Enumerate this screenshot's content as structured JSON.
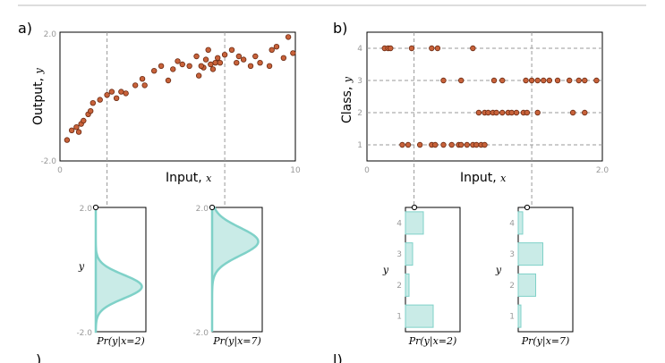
{
  "panels": {
    "a": "a)",
    "b": "b)",
    "c": ")",
    "d": "l)"
  },
  "chart_data": [
    {
      "id": "a",
      "type": "scatter",
      "xlabel_text": "Input, ",
      "xlabel_var": "x",
      "ylabel_text": "Output, ",
      "ylabel_var": "y",
      "xlim": [
        0,
        10
      ],
      "ylim": [
        -2.0,
        2.0
      ],
      "xtick_labels": [
        "0",
        "10"
      ],
      "ytick_labels": [
        "2.0",
        "-2.0"
      ],
      "markers_x": [
        2,
        7
      ],
      "points": [
        [
          0.3,
          -1.35
        ],
        [
          0.5,
          -1.05
        ],
        [
          0.7,
          -0.95
        ],
        [
          0.8,
          -1.1
        ],
        [
          0.9,
          -0.85
        ],
        [
          1.0,
          -0.75
        ],
        [
          1.2,
          -0.55
        ],
        [
          1.3,
          -0.45
        ],
        [
          1.4,
          -0.2
        ],
        [
          1.7,
          -0.1
        ],
        [
          2.0,
          0.05
        ],
        [
          2.2,
          0.15
        ],
        [
          2.4,
          -0.05
        ],
        [
          2.6,
          0.15
        ],
        [
          2.8,
          0.1
        ],
        [
          3.2,
          0.35
        ],
        [
          3.5,
          0.55
        ],
        [
          3.6,
          0.35
        ],
        [
          4.0,
          0.8
        ],
        [
          4.3,
          0.95
        ],
        [
          4.6,
          0.5
        ],
        [
          4.8,
          0.85
        ],
        [
          5.0,
          1.1
        ],
        [
          5.2,
          1.0
        ],
        [
          5.5,
          0.95
        ],
        [
          5.8,
          1.25
        ],
        [
          6.1,
          0.9
        ],
        [
          6.3,
          1.45
        ],
        [
          6.6,
          1.05
        ],
        [
          6.8,
          1.05
        ],
        [
          7.0,
          1.3
        ],
        [
          5.9,
          0.65
        ],
        [
          6.0,
          0.95
        ],
        [
          6.2,
          1.15
        ],
        [
          6.4,
          1.0
        ],
        [
          6.5,
          0.85
        ],
        [
          6.7,
          1.2
        ],
        [
          7.3,
          1.45
        ],
        [
          7.5,
          1.05
        ],
        [
          7.6,
          1.25
        ],
        [
          7.8,
          1.15
        ],
        [
          8.1,
          0.95
        ],
        [
          8.3,
          1.25
        ],
        [
          8.5,
          1.05
        ],
        [
          8.9,
          0.95
        ],
        [
          9.0,
          1.45
        ],
        [
          9.2,
          1.55
        ],
        [
          9.5,
          1.2
        ],
        [
          9.7,
          1.85
        ],
        [
          9.9,
          1.35
        ]
      ]
    },
    {
      "id": "b",
      "type": "scatter",
      "xlabel_text": "Input, ",
      "xlabel_var": "x",
      "ylabel_text": "Class, ",
      "ylabel_var": "y",
      "xlim": [
        0,
        2.0
      ],
      "ylim": [
        0.5,
        4.5
      ],
      "xtick_labels": [
        "0",
        "2.0"
      ],
      "yticks": [
        "1",
        "2",
        "3",
        "4"
      ],
      "markers_x": [
        0.4,
        1.4
      ],
      "class_points": {
        "1": [
          0.3,
          0.35,
          0.45,
          0.55,
          0.58,
          0.65,
          0.72,
          0.78,
          0.8,
          0.85,
          0.9,
          0.93,
          0.97,
          1.0
        ],
        "2": [
          0.95,
          1.0,
          1.03,
          1.07,
          1.1,
          1.15,
          1.2,
          1.23,
          1.27,
          1.33,
          1.36,
          1.45,
          1.75,
          1.85
        ],
        "3": [
          0.65,
          0.8,
          1.08,
          1.15,
          1.35,
          1.4,
          1.45,
          1.5,
          1.55,
          1.62,
          1.72,
          1.8,
          1.85,
          1.95
        ],
        "4": [
          0.15,
          0.18,
          0.2,
          0.38,
          0.55,
          0.6,
          0.9
        ]
      }
    },
    {
      "id": "c1",
      "type": "area",
      "ylim": [
        -2.0,
        2.0
      ],
      "ytick_labels": [
        "2.0",
        "-2.0"
      ],
      "ylabel_var": "y",
      "xlabel": "Pr(y|x=2)",
      "mean": -0.55,
      "sd": 0.38
    },
    {
      "id": "c2",
      "type": "area",
      "ylim": [
        -2.0,
        2.0
      ],
      "ytick_labels": [
        "2.0",
        "-2.0"
      ],
      "xlabel": "Pr(y|x=7)",
      "mean": 0.9,
      "sd": 0.45
    },
    {
      "id": "d1",
      "type": "bar",
      "categories": [
        "1",
        "2",
        "3",
        "4"
      ],
      "values": [
        0.62,
        0.08,
        0.16,
        0.4
      ],
      "ylabel_var": "y",
      "xlabel": "Pr(y|x=2)"
    },
    {
      "id": "d2",
      "type": "bar",
      "categories": [
        "1",
        "2",
        "3",
        "4"
      ],
      "values": [
        0.06,
        0.39,
        0.55,
        0.1
      ],
      "ylabel_var": "y",
      "xlabel": "Pr(y|x=7)"
    }
  ]
}
